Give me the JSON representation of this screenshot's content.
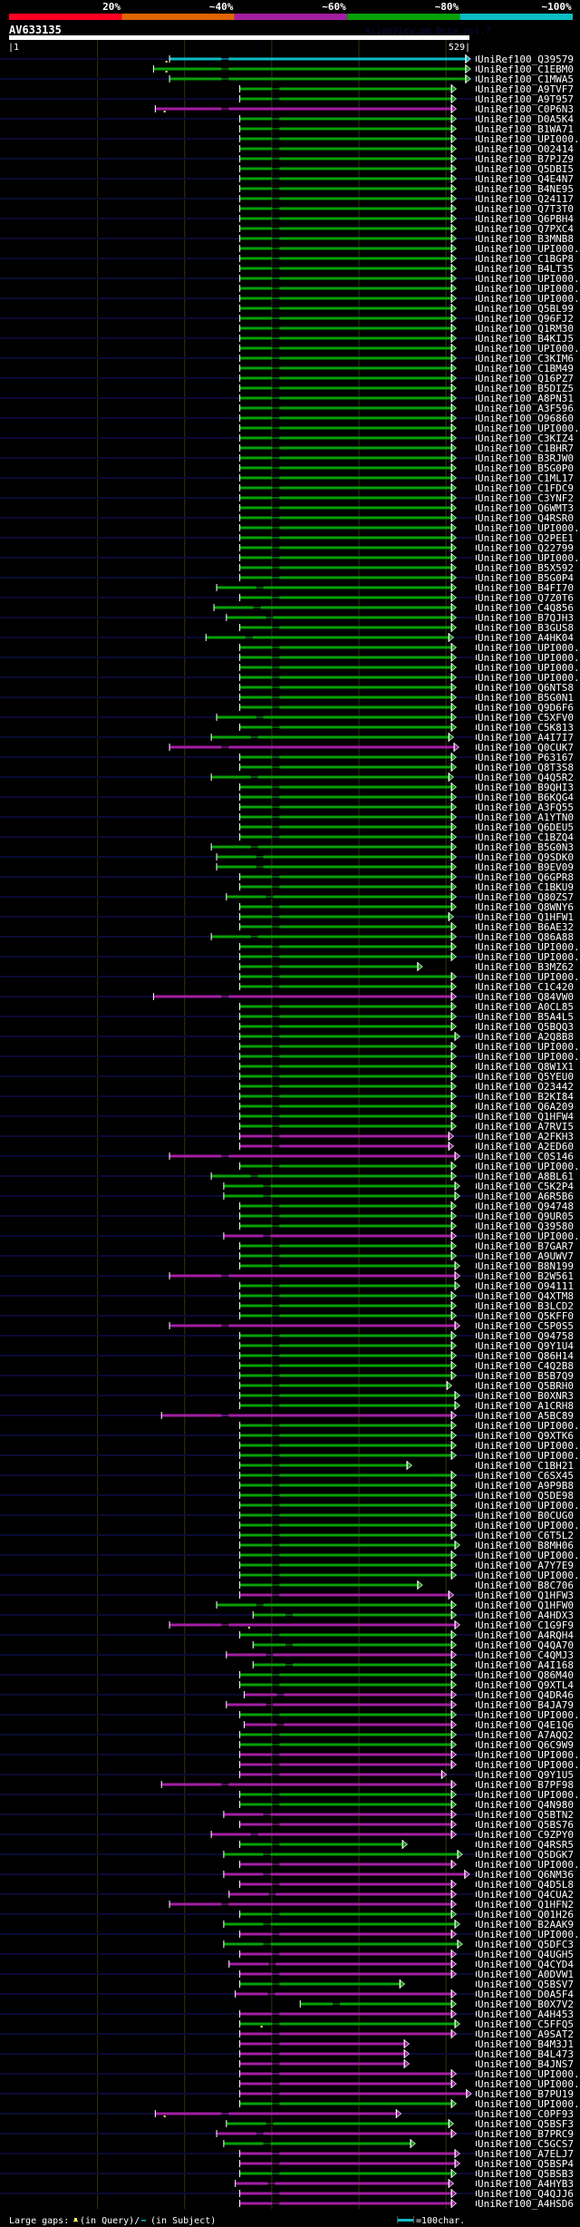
{
  "header": {
    "query_id": "AV633135",
    "version": "AlignView.pm Beta rel.7",
    "scale_start": "|1",
    "scale_end": "529|",
    "query_length": 529,
    "identity_legend": [
      {
        "label": "20%",
        "color": "#ff0022"
      },
      {
        "label": "~40%",
        "color": "#e06400"
      },
      {
        "label": "~60%",
        "color": "#a21ea2"
      },
      {
        "label": "~80%",
        "color": "#06a006"
      },
      {
        "label": "~100%",
        "color": "#0cbcc4"
      }
    ]
  },
  "colors": {
    "c": "#0cbcc4",
    "g": "#06a006",
    "m": "#a21ea2",
    "query_line": "#0a0a34",
    "grid": "#34340e",
    "gap_mark": "#ffff66"
  },
  "grid_positions": [
    100,
    198,
    296,
    394,
    492
  ],
  "label_prefix": "UniRef100_",
  "rows": [
    [
      "Q39579",
      181,
      514,
      "c",
      177
    ],
    [
      "C1EBM0",
      163,
      514,
      "g",
      177
    ],
    [
      "C1MWA5",
      181,
      514,
      "g"
    ],
    [
      "A9TVF7",
      260,
      498,
      "g"
    ],
    [
      "A9T957",
      260,
      498,
      "g"
    ],
    [
      "C0P6N3",
      165,
      498,
      "m",
      175
    ],
    [
      "D0A5K4",
      260,
      498,
      "g"
    ],
    [
      "B1WA71",
      260,
      498,
      "g"
    ],
    [
      "UPI000..",
      260,
      498,
      "g"
    ],
    [
      "O02414",
      260,
      498,
      "g"
    ],
    [
      "B7PJZ9",
      260,
      498,
      "g"
    ],
    [
      "Q5DBI5",
      260,
      498,
      "g"
    ],
    [
      "Q4E4N7",
      260,
      498,
      "g"
    ],
    [
      "B4NE95",
      260,
      498,
      "g"
    ],
    [
      "Q24117",
      260,
      498,
      "g"
    ],
    [
      "Q7T3T0",
      260,
      498,
      "g"
    ],
    [
      "Q6PBH4",
      260,
      498,
      "g"
    ],
    [
      "Q7PXC4",
      260,
      498,
      "g"
    ],
    [
      "B3MNB8",
      260,
      498,
      "g"
    ],
    [
      "UPI000..",
      260,
      498,
      "g"
    ],
    [
      "C1BGP8",
      260,
      498,
      "g"
    ],
    [
      "B4LT35",
      260,
      498,
      "g"
    ],
    [
      "UPI000..",
      260,
      498,
      "g"
    ],
    [
      "UPI000..",
      260,
      498,
      "g"
    ],
    [
      "UPI000..",
      260,
      498,
      "g"
    ],
    [
      "Q5BL99",
      260,
      498,
      "g"
    ],
    [
      "Q96FJ2",
      260,
      498,
      "g"
    ],
    [
      "Q1RM30",
      260,
      498,
      "g"
    ],
    [
      "B4KIJ5",
      260,
      498,
      "g"
    ],
    [
      "UPI000..",
      260,
      498,
      "g"
    ],
    [
      "C3KIM6",
      260,
      498,
      "g"
    ],
    [
      "C1BM49",
      260,
      498,
      "g"
    ],
    [
      "Q16PZ7",
      260,
      498,
      "g"
    ],
    [
      "B5DIZ5",
      260,
      498,
      "g"
    ],
    [
      "A8PN31",
      260,
      498,
      "g"
    ],
    [
      "A3F596",
      260,
      498,
      "g"
    ],
    [
      "O96860",
      260,
      498,
      "g"
    ],
    [
      "UPI000..",
      260,
      498,
      "g"
    ],
    [
      "C3KIZ4",
      260,
      498,
      "g"
    ],
    [
      "C1BHR7",
      260,
      498,
      "g"
    ],
    [
      "B3RJW0",
      260,
      498,
      "g"
    ],
    [
      "B5G0P0",
      260,
      498,
      "g"
    ],
    [
      "C1ML17",
      260,
      498,
      "g"
    ],
    [
      "C1FDC9",
      260,
      498,
      "g"
    ],
    [
      "C3YNF2",
      260,
      498,
      "g"
    ],
    [
      "Q6WMT3",
      260,
      498,
      "g"
    ],
    [
      "Q4RSR0",
      260,
      498,
      "g"
    ],
    [
      "UPI000..",
      260,
      498,
      "g"
    ],
    [
      "Q2PEE1",
      260,
      498,
      "g"
    ],
    [
      "Q22799",
      260,
      498,
      "g"
    ],
    [
      "UPI000..",
      260,
      498,
      "g"
    ],
    [
      "B5X592",
      260,
      498,
      "g"
    ],
    [
      "B5G0P4",
      260,
      498,
      "g"
    ],
    [
      "B4FI70",
      234,
      498,
      "g"
    ],
    [
      "Q7Z0T6",
      260,
      498,
      "g"
    ],
    [
      "C4Q856",
      231,
      498,
      "g"
    ],
    [
      "B7QJH3",
      245,
      498,
      "g"
    ],
    [
      "B3GUS8",
      260,
      498,
      "g"
    ],
    [
      "A4HK04",
      222,
      495,
      "g"
    ],
    [
      "UPI000..",
      260,
      498,
      "g"
    ],
    [
      "UPI000..",
      260,
      498,
      "g"
    ],
    [
      "UPI000..",
      260,
      498,
      "g"
    ],
    [
      "UPI000..",
      260,
      498,
      "g"
    ],
    [
      "Q6NTS8",
      260,
      498,
      "g"
    ],
    [
      "B5G0N1",
      260,
      498,
      "g"
    ],
    [
      "Q9D6F6",
      260,
      498,
      "g"
    ],
    [
      "C5XFV0",
      234,
      498,
      "g"
    ],
    [
      "C5K813",
      260,
      498,
      "g"
    ],
    [
      "A4I7I7",
      228,
      495,
      "g"
    ],
    [
      "Q0CUK7",
      181,
      501,
      "m"
    ],
    [
      "P63167",
      260,
      498,
      "g"
    ],
    [
      "Q8T3S8",
      260,
      498,
      "g"
    ],
    [
      "Q4Q5R2",
      228,
      495,
      "g"
    ],
    [
      "B9QHI3",
      260,
      498,
      "g"
    ],
    [
      "B6KQG4",
      260,
      498,
      "g"
    ],
    [
      "A3FQ55",
      260,
      498,
      "g"
    ],
    [
      "A1YTN0",
      260,
      498,
      "g"
    ],
    [
      "Q6DEU5",
      260,
      498,
      "g"
    ],
    [
      "C1BZQ4",
      260,
      498,
      "g"
    ],
    [
      "B5G0N3",
      228,
      498,
      "g"
    ],
    [
      "Q9SDK0",
      234,
      498,
      "g"
    ],
    [
      "B9EV09",
      234,
      498,
      "g"
    ],
    [
      "Q6GPR8",
      260,
      498,
      "g"
    ],
    [
      "C1BKU9",
      260,
      498,
      "g"
    ],
    [
      "Q80ZS7",
      245,
      498,
      "g"
    ],
    [
      "Q8WNY6",
      260,
      498,
      "g"
    ],
    [
      "Q1HFW1",
      260,
      495,
      "g"
    ],
    [
      "B6AE32",
      260,
      498,
      "g"
    ],
    [
      "Q86A88",
      228,
      498,
      "g"
    ],
    [
      "UPI000..",
      260,
      498,
      "g"
    ],
    [
      "UPI000..",
      260,
      498,
      "g"
    ],
    [
      "B3MZ62",
      260,
      460,
      "g"
    ],
    [
      "UPI000..",
      260,
      498,
      "g"
    ],
    [
      "C1C420",
      260,
      498,
      "g"
    ],
    [
      "Q84VW0",
      163,
      498,
      "m"
    ],
    [
      "A0CL85",
      260,
      498,
      "g"
    ],
    [
      "B5A4L5",
      260,
      498,
      "g"
    ],
    [
      "Q5BQQ3",
      260,
      498,
      "g"
    ],
    [
      "A2Q8B8",
      260,
      502,
      "g"
    ],
    [
      "UPI000..",
      260,
      498,
      "g"
    ],
    [
      "UPI000..",
      260,
      498,
      "g"
    ],
    [
      "Q8W1X1",
      260,
      498,
      "g"
    ],
    [
      "Q5YEU0",
      260,
      498,
      "g"
    ],
    [
      "O23442",
      260,
      498,
      "g"
    ],
    [
      "B2KI84",
      260,
      498,
      "g"
    ],
    [
      "Q6A209",
      260,
      498,
      "g"
    ],
    [
      "Q1HFW4",
      260,
      498,
      "g"
    ],
    [
      "A7RVI5",
      260,
      498,
      "g"
    ],
    [
      "A2FKH3",
      260,
      495,
      "m"
    ],
    [
      "A2ED60",
      260,
      495,
      "m"
    ],
    [
      "C0S146",
      181,
      502,
      "m"
    ],
    [
      "UPI000..",
      260,
      498,
      "g"
    ],
    [
      "A8BL61",
      228,
      498,
      "g"
    ],
    [
      "C5K2P4",
      242,
      502,
      "g"
    ],
    [
      "A6R5B6",
      242,
      502,
      "g"
    ],
    [
      "Q94748",
      260,
      498,
      "g"
    ],
    [
      "Q9UR05",
      260,
      498,
      "g"
    ],
    [
      "Q39580",
      260,
      498,
      "g"
    ],
    [
      "UPI000..",
      242,
      498,
      "m"
    ],
    [
      "B7GAR7",
      260,
      498,
      "g"
    ],
    [
      "A9UWV7",
      260,
      498,
      "g"
    ],
    [
      "B8N199",
      260,
      502,
      "g"
    ],
    [
      "B2W561",
      181,
      502,
      "m"
    ],
    [
      "O94111",
      260,
      502,
      "g"
    ],
    [
      "Q4XTM8",
      260,
      498,
      "g"
    ],
    [
      "B3LCD2",
      260,
      498,
      "g"
    ],
    [
      "Q5KFF0",
      260,
      498,
      "g"
    ],
    [
      "C5P0S5",
      181,
      502,
      "m"
    ],
    [
      "Q94758",
      260,
      498,
      "g"
    ],
    [
      "Q9Y1U4",
      260,
      498,
      "g"
    ],
    [
      "Q86H14",
      260,
      498,
      "g"
    ],
    [
      "C4Q2B8",
      260,
      498,
      "g"
    ],
    [
      "B5B7Q9",
      260,
      498,
      "g"
    ],
    [
      "Q5BRH0",
      260,
      493,
      "g"
    ],
    [
      "B0XNR3",
      260,
      502,
      "g"
    ],
    [
      "A1CRH8",
      260,
      502,
      "g"
    ],
    [
      "A5BC89",
      172,
      498,
      "m"
    ],
    [
      "UPI000..",
      260,
      498,
      "g"
    ],
    [
      "Q9XTK6",
      260,
      498,
      "g"
    ],
    [
      "UPI000..",
      260,
      498,
      "g"
    ],
    [
      "UPI000..",
      260,
      498,
      "g"
    ],
    [
      "C1BH21",
      260,
      448,
      "g"
    ],
    [
      "C6SX45",
      260,
      498,
      "g"
    ],
    [
      "A9P9B8",
      260,
      498,
      "g"
    ],
    [
      "Q5DE98",
      260,
      498,
      "g"
    ],
    [
      "UPI000..",
      260,
      498,
      "g"
    ],
    [
      "B0CUG0",
      260,
      498,
      "g"
    ],
    [
      "UPI000..",
      260,
      498,
      "g"
    ],
    [
      "C6T5L2",
      260,
      498,
      "g"
    ],
    [
      "B8MH06",
      260,
      502,
      "g"
    ],
    [
      "UPI000..",
      260,
      498,
      "g"
    ],
    [
      "A7Y7E9",
      260,
      498,
      "g"
    ],
    [
      "UPI000..",
      260,
      498,
      "g"
    ],
    [
      "B8C706",
      260,
      460,
      "g"
    ],
    [
      "Q1HFW3",
      260,
      495,
      "m"
    ],
    [
      "Q1HFW0",
      234,
      498,
      "g"
    ],
    [
      "A4HDX3",
      275,
      498,
      "g"
    ],
    [
      "C1G9F9",
      181,
      502,
      "m",
      270
    ],
    [
      "A4RQH4",
      260,
      498,
      "g"
    ],
    [
      "Q4QA70",
      275,
      498,
      "g"
    ],
    [
      "C4QMJ3",
      245,
      498,
      "m"
    ],
    [
      "A4I168",
      275,
      498,
      "g"
    ],
    [
      "Q86M40",
      260,
      498,
      "g"
    ],
    [
      "Q9XTL4",
      260,
      498,
      "g"
    ],
    [
      "Q4DR46",
      265,
      498,
      "m"
    ],
    [
      "B4JA79",
      245,
      498,
      "m"
    ],
    [
      "UPI000..",
      260,
      498,
      "g"
    ],
    [
      "Q4E1Q6",
      265,
      498,
      "m"
    ],
    [
      "A7AQQ2",
      260,
      498,
      "g"
    ],
    [
      "Q6C9W9",
      260,
      498,
      "g"
    ],
    [
      "UPI000..",
      260,
      498,
      "m"
    ],
    [
      "UPI000..",
      260,
      498,
      "m"
    ],
    [
      "Q9Y1U5",
      260,
      487,
      "m"
    ],
    [
      "B7PF98",
      172,
      498,
      "m"
    ],
    [
      "UPI000..",
      260,
      498,
      "g"
    ],
    [
      "Q4N980",
      260,
      498,
      "g"
    ],
    [
      "Q5BTN2",
      242,
      498,
      "m"
    ],
    [
      "Q5BS76",
      260,
      498,
      "m"
    ],
    [
      "C9ZPY0",
      228,
      498,
      "m"
    ],
    [
      "Q4RSR5",
      260,
      443,
      "g"
    ],
    [
      "Q5DGK7",
      242,
      505,
      "g"
    ],
    [
      "UPI000..",
      260,
      498,
      "m"
    ],
    [
      "Q6NM36",
      242,
      513,
      "m"
    ],
    [
      "Q4D5L8",
      260,
      498,
      "m"
    ],
    [
      "Q4CUA2",
      248,
      498,
      "m"
    ],
    [
      "Q1HFN2",
      181,
      498,
      "m"
    ],
    [
      "Q01H26",
      260,
      498,
      "g"
    ],
    [
      "B2AAK9",
      242,
      502,
      "g"
    ],
    [
      "UPI000..",
      260,
      498,
      "m"
    ],
    [
      "Q5DFC3",
      242,
      505,
      "g"
    ],
    [
      "Q4UGH5",
      260,
      498,
      "m"
    ],
    [
      "Q4CYD4",
      248,
      498,
      "m"
    ],
    [
      "A0DVW1",
      260,
      498,
      "m"
    ],
    [
      "Q5BSV7",
      260,
      440,
      "g"
    ],
    [
      "D0A5F4",
      255,
      498,
      "m"
    ],
    [
      "B0X7V2",
      328,
      498,
      "g"
    ],
    [
      "A4H453",
      260,
      498,
      "m"
    ],
    [
      "C5FFQ5",
      260,
      502,
      "g",
      284
    ],
    [
      "A9SAT2",
      260,
      498,
      "m"
    ],
    [
      "B4M3J1",
      260,
      445,
      "m"
    ],
    [
      "B4L473",
      260,
      445,
      "m"
    ],
    [
      "B4JNS7",
      260,
      445,
      "m"
    ],
    [
      "UPI000..",
      260,
      498,
      "m"
    ],
    [
      "UPI000..",
      260,
      498,
      "m"
    ],
    [
      "B7PU19",
      260,
      515,
      "m"
    ],
    [
      "UPI000..",
      260,
      498,
      "g"
    ],
    [
      "C0PF93",
      165,
      436,
      "m",
      175
    ],
    [
      "Q5BSF3",
      245,
      495,
      "g"
    ],
    [
      "B7PRC9",
      234,
      498,
      "m"
    ],
    [
      "C5GCS7",
      242,
      452,
      "g"
    ],
    [
      "A7ELJ7",
      260,
      502,
      "m"
    ],
    [
      "Q5BSP4",
      260,
      502,
      "m"
    ],
    [
      "Q5BSB3",
      260,
      498,
      "g"
    ],
    [
      "A4HYB3",
      255,
      495,
      "m"
    ],
    [
      "Q4QJJ6",
      260,
      498,
      "m"
    ],
    [
      "A4HSD6",
      260,
      498,
      "m"
    ]
  ],
  "footer": {
    "gaps_label": "Large gaps:",
    "in_query": "(in Query)/",
    "in_subject": "(in Subject)",
    "scale_label": "=100char."
  }
}
